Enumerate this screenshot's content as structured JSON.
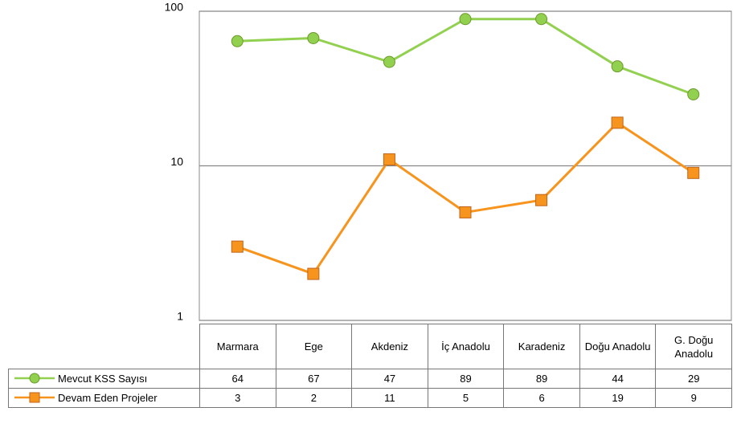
{
  "chart_data": {
    "type": "line",
    "categories": [
      "Marmara",
      "Ege",
      "Akdeniz",
      "İç Anadolu",
      "Karadeniz",
      "Doğu Anadolu",
      "G. Doğu Anadolu"
    ],
    "series": [
      {
        "name": "Mevcut KSS Sayısı",
        "color": "#92d050",
        "marker": "circle",
        "values": [
          64,
          67,
          47,
          89,
          89,
          44,
          29
        ]
      },
      {
        "name": "Devam Eden Projeler",
        "color": "#f7941d",
        "marker": "square",
        "values": [
          3,
          2,
          11,
          5,
          6,
          19,
          9
        ]
      }
    ],
    "ylim": [
      1,
      100
    ],
    "yticks": [
      1,
      10,
      100
    ],
    "log_scale": true,
    "grid": true
  }
}
